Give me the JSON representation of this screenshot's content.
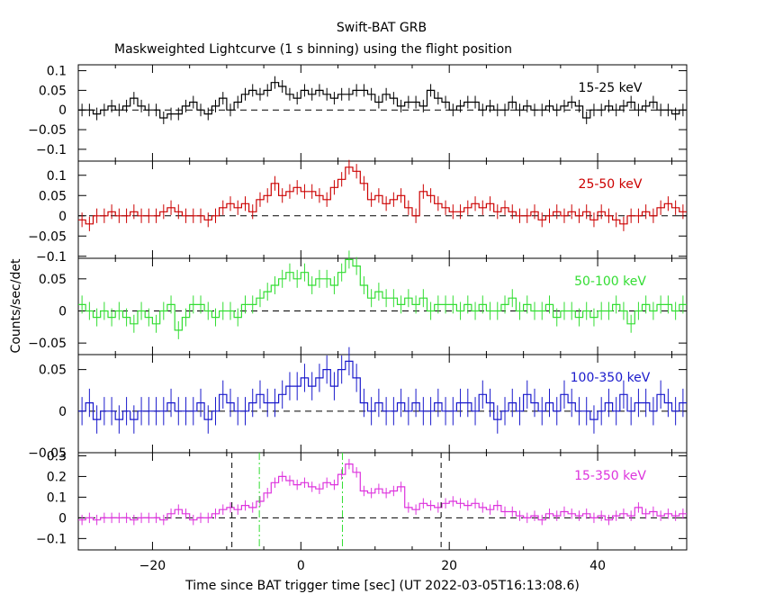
{
  "header": {
    "title": "Swift-BAT GRB",
    "subtitle": "Maskweighted Lightcurve (1 s binning) using the flight position"
  },
  "axes": {
    "xlabel": "Time since BAT trigger time [sec] (UT 2022-03-05T16:13:08.6)",
    "ylabel": "Counts/sec/det"
  },
  "chart_data": {
    "type": "line",
    "style": "step-with-errorbars",
    "xlim": [
      -30,
      52
    ],
    "x_ticks": [
      -20,
      0,
      20,
      40
    ],
    "x_start": -30,
    "bin_width": 1,
    "grid": false,
    "panels": [
      {
        "label": "15-25 keV",
        "color": "#000000",
        "ylim": [
          -0.13,
          0.115
        ],
        "yticks": [
          0.1,
          0.05,
          0,
          -0.05,
          -0.1
        ],
        "ytick_labels": [
          "0.1",
          "0.05",
          "0",
          "−0.05",
          "−0.1"
        ],
        "err": 0.016,
        "values": [
          0.0,
          0.0,
          -0.01,
          0.0,
          0.01,
          0.0,
          0.01,
          0.03,
          0.01,
          0.0,
          0.0,
          -0.02,
          -0.01,
          -0.01,
          0.01,
          0.02,
          0.0,
          -0.01,
          0.01,
          0.03,
          0.0,
          0.02,
          0.04,
          0.05,
          0.04,
          0.05,
          0.07,
          0.06,
          0.04,
          0.03,
          0.05,
          0.04,
          0.05,
          0.04,
          0.03,
          0.04,
          0.04,
          0.05,
          0.05,
          0.04,
          0.02,
          0.04,
          0.03,
          0.01,
          0.02,
          0.02,
          0.01,
          0.05,
          0.03,
          0.02,
          0.0,
          0.01,
          0.02,
          0.02,
          0.0,
          0.01,
          0.0,
          0.0,
          0.02,
          0.0,
          0.01,
          0.0,
          0.0,
          0.01,
          0.0,
          0.01,
          0.02,
          0.01,
          -0.02,
          0.0,
          0.0,
          0.01,
          0.0,
          0.01,
          0.02,
          0.0,
          0.01,
          0.02,
          0.0,
          0.0,
          -0.01,
          0.0
        ]
      },
      {
        "label": "25-50 keV",
        "color": "#cc0000",
        "ylim": [
          -0.105,
          0.135
        ],
        "yticks": [
          0.1,
          0.05,
          0,
          -0.05,
          -0.1
        ],
        "ytick_labels": [
          "0.1",
          "0.05",
          "0",
          "−0.05",
          "−0.1"
        ],
        "err": 0.018,
        "values": [
          -0.01,
          -0.02,
          0.0,
          0.0,
          0.01,
          0.0,
          0.0,
          0.01,
          0.0,
          0.0,
          0.0,
          0.01,
          0.02,
          0.01,
          0.0,
          0.0,
          0.0,
          -0.01,
          0.0,
          0.02,
          0.03,
          0.02,
          0.03,
          0.01,
          0.04,
          0.05,
          0.08,
          0.05,
          0.06,
          0.07,
          0.06,
          0.06,
          0.05,
          0.04,
          0.07,
          0.09,
          0.12,
          0.11,
          0.08,
          0.04,
          0.05,
          0.03,
          0.04,
          0.05,
          0.02,
          0.0,
          0.06,
          0.05,
          0.03,
          0.02,
          0.01,
          0.01,
          0.02,
          0.03,
          0.02,
          0.03,
          0.01,
          0.02,
          0.01,
          0.0,
          0.0,
          0.01,
          -0.01,
          0.0,
          0.01,
          0.0,
          0.01,
          0.0,
          0.01,
          -0.01,
          0.01,
          0.0,
          -0.01,
          -0.02,
          0.0,
          0.0,
          0.01,
          0.0,
          0.02,
          0.03,
          0.02,
          0.01
        ]
      },
      {
        "label": "50-100 keV",
        "color": "#33dd33",
        "ylim": [
          -0.068,
          0.082
        ],
        "yticks": [
          0.05,
          0,
          -0.05
        ],
        "ytick_labels": [
          "0.05",
          "0",
          "−0.05"
        ],
        "err": 0.014,
        "values": [
          0.01,
          0.0,
          -0.01,
          0.0,
          -0.01,
          0.0,
          -0.01,
          -0.02,
          0.0,
          -0.01,
          -0.02,
          0.0,
          0.01,
          -0.03,
          -0.01,
          0.01,
          0.01,
          0.0,
          -0.01,
          0.0,
          0.0,
          -0.01,
          0.01,
          0.01,
          0.02,
          0.03,
          0.04,
          0.05,
          0.06,
          0.05,
          0.06,
          0.04,
          0.05,
          0.05,
          0.04,
          0.06,
          0.08,
          0.07,
          0.04,
          0.02,
          0.03,
          0.02,
          0.02,
          0.01,
          0.02,
          0.01,
          0.02,
          0.0,
          0.01,
          0.01,
          0.01,
          0.0,
          0.01,
          0.0,
          0.01,
          0.0,
          0.0,
          0.01,
          0.02,
          0.0,
          0.01,
          0.0,
          0.0,
          0.01,
          -0.01,
          0.0,
          0.0,
          -0.01,
          0.0,
          -0.01,
          0.0,
          0.0,
          0.01,
          0.0,
          -0.02,
          0.0,
          0.01,
          0.0,
          0.01,
          0.01,
          0.0,
          0.01
        ]
      },
      {
        "label": "100-350 keV",
        "color": "#1a1acc",
        "ylim": [
          -0.05,
          0.068
        ],
        "yticks": [
          0.05,
          0,
          -0.05
        ],
        "ytick_labels": [
          "0.05",
          "0",
          "−0.05"
        ],
        "err": 0.017,
        "values": [
          0.0,
          0.01,
          -0.01,
          0.0,
          0.0,
          -0.01,
          0.0,
          -0.01,
          0.0,
          0.0,
          0.0,
          0.0,
          0.01,
          0.0,
          0.0,
          0.0,
          0.01,
          -0.01,
          0.0,
          0.02,
          0.01,
          0.0,
          0.0,
          0.01,
          0.02,
          0.01,
          0.01,
          0.02,
          0.03,
          0.03,
          0.04,
          0.03,
          0.04,
          0.05,
          0.03,
          0.05,
          0.06,
          0.04,
          0.01,
          0.0,
          0.01,
          0.0,
          0.0,
          0.01,
          0.0,
          0.01,
          0.0,
          0.0,
          0.01,
          0.0,
          0.0,
          0.01,
          0.01,
          0.0,
          0.02,
          0.01,
          -0.01,
          0.0,
          0.01,
          0.0,
          0.02,
          0.01,
          0.0,
          0.01,
          0.0,
          0.02,
          0.01,
          0.0,
          0.0,
          -0.01,
          0.0,
          0.01,
          0.0,
          0.02,
          0.0,
          0.01,
          0.01,
          0.0,
          0.02,
          0.01,
          0.0,
          0.01
        ]
      },
      {
        "label": "15-350 keV",
        "color": "#dd33dd",
        "ylim": [
          -0.155,
          0.315
        ],
        "yticks": [
          0.3,
          0.2,
          0.1,
          0,
          -0.1
        ],
        "ytick_labels": [
          "0.3",
          "0.2",
          "0.1",
          "0",
          "−0.1"
        ],
        "err": 0.025,
        "values": [
          -0.01,
          0.0,
          -0.01,
          0.0,
          0.0,
          0.0,
          0.0,
          -0.01,
          0.0,
          0.0,
          0.0,
          -0.01,
          0.02,
          0.04,
          0.02,
          -0.01,
          0.0,
          0.0,
          0.02,
          0.04,
          0.05,
          0.04,
          0.06,
          0.05,
          0.08,
          0.12,
          0.17,
          0.2,
          0.18,
          0.16,
          0.17,
          0.15,
          0.14,
          0.17,
          0.16,
          0.21,
          0.26,
          0.22,
          0.13,
          0.12,
          0.14,
          0.12,
          0.13,
          0.15,
          0.05,
          0.04,
          0.07,
          0.06,
          0.05,
          0.07,
          0.08,
          0.07,
          0.06,
          0.07,
          0.05,
          0.04,
          0.06,
          0.03,
          0.03,
          0.01,
          0.0,
          0.01,
          -0.01,
          0.02,
          0.01,
          0.03,
          0.02,
          0.01,
          0.02,
          0.0,
          0.01,
          -0.01,
          0.01,
          0.02,
          0.01,
          0.05,
          0.02,
          0.03,
          0.01,
          0.02,
          0.01,
          0.02
        ]
      }
    ],
    "vertical_markers": [
      {
        "x": -9.3,
        "color": "#000000",
        "style": "dashed"
      },
      {
        "x": 18.9,
        "color": "#000000",
        "style": "dashed"
      },
      {
        "x": -5.6,
        "color": "#33dd33",
        "style": "dash-dot"
      },
      {
        "x": 5.6,
        "color": "#33dd33",
        "style": "dash-dot"
      }
    ]
  }
}
